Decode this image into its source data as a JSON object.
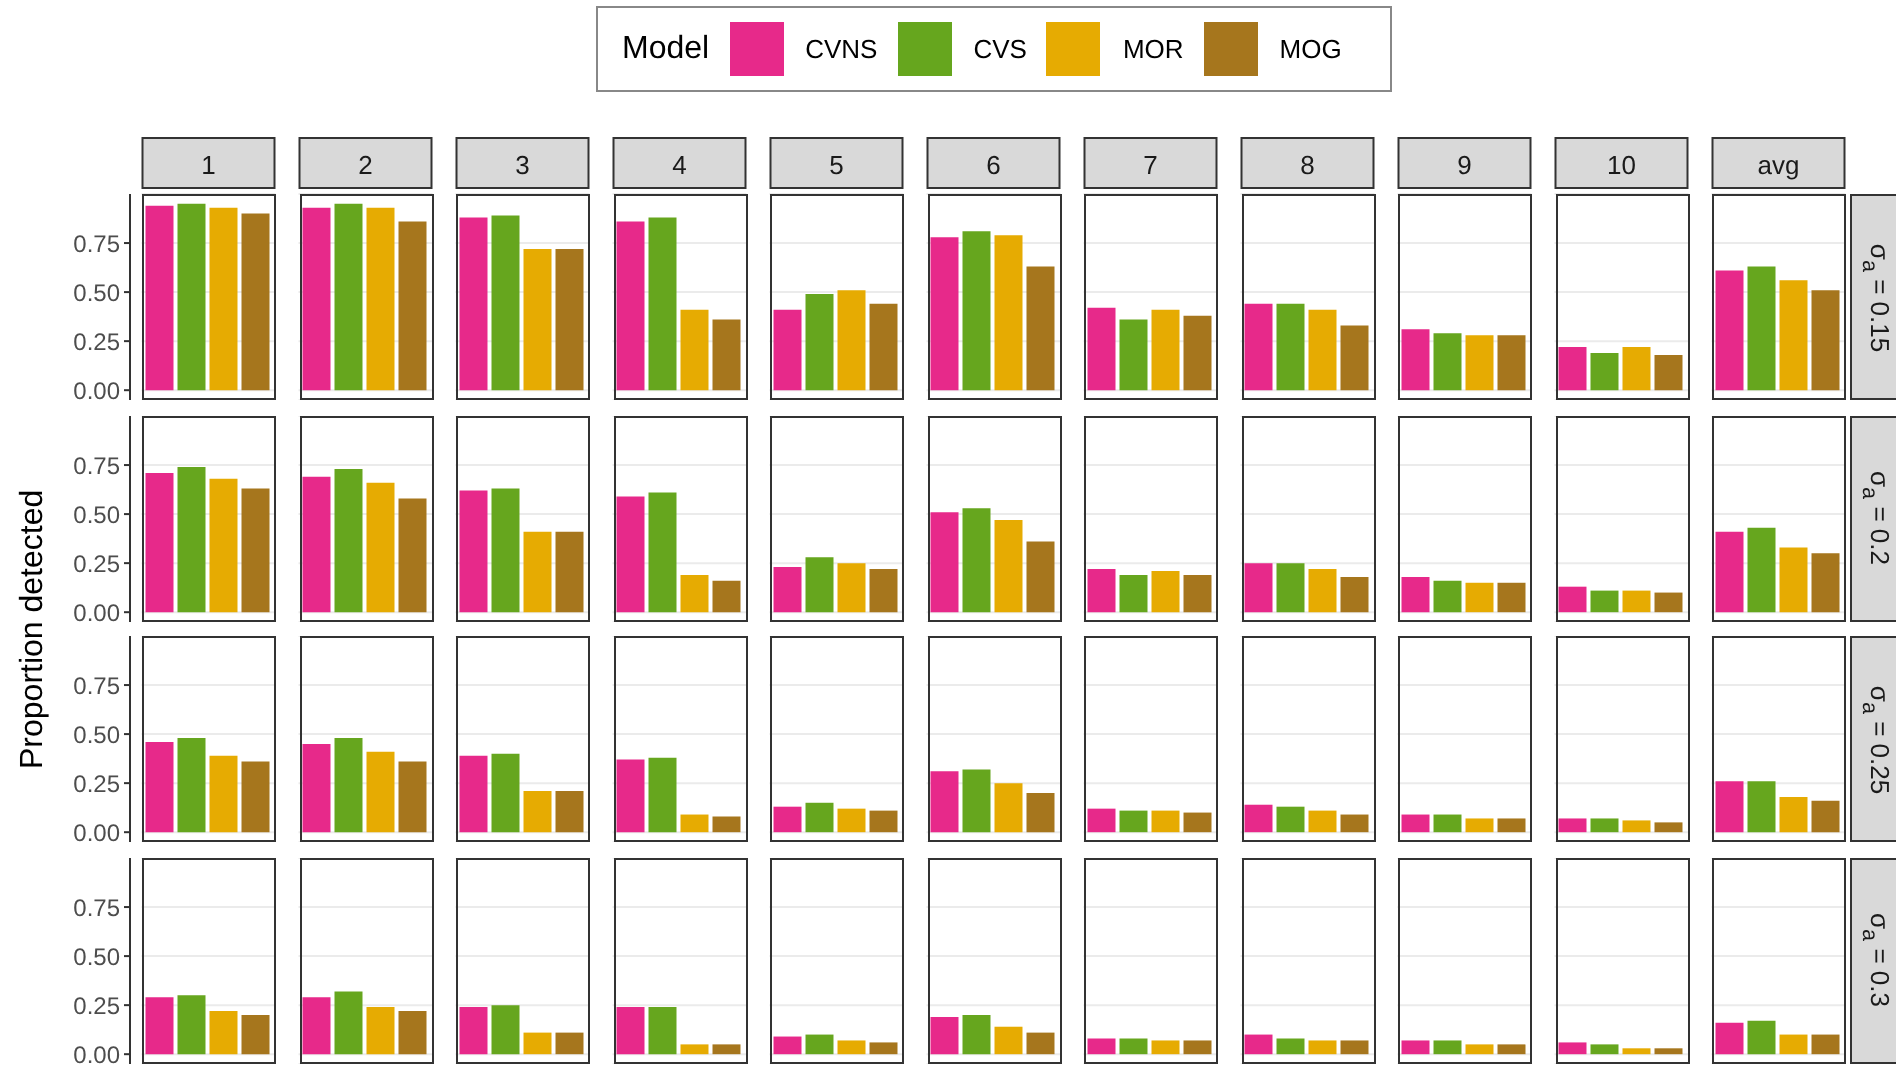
{
  "chart_data": [
    {
      "type": "bar",
      "legend": "top",
      "legend_title": "Model",
      "y2label": "σ$_{a}$ = 0.15",
      "grid": "y",
      "ylim": [
        -0.05,
        1
      ],
      "yticks": [
        {
          "value": 0,
          "label": "0.00"
        },
        {
          "value": 0.25,
          "label": "0.25"
        },
        {
          "value": 0.5,
          "label": "0.50"
        },
        {
          "value": 0.75,
          "label": "0.75"
        }
      ],
      "categories": [
        "1",
        "2",
        "3",
        "4",
        "5",
        "6",
        "7",
        "8",
        "9",
        "10",
        "avg"
      ],
      "series": [
        {
          "name": "CVNS",
          "color": "#e7298a",
          "values": [
            0.94,
            0.93,
            0.88,
            0.86,
            0.41,
            0.78,
            0.42,
            0.44,
            0.31,
            0.22,
            0.61
          ]
        },
        {
          "name": "CVS",
          "color": "#66a61e",
          "values": [
            0.95,
            0.95,
            0.89,
            0.88,
            0.49,
            0.81,
            0.36,
            0.44,
            0.29,
            0.19,
            0.63
          ]
        },
        {
          "name": "MOR",
          "color": "#e6ab02",
          "values": [
            0.93,
            0.93,
            0.72,
            0.41,
            0.51,
            0.79,
            0.41,
            0.41,
            0.28,
            0.22,
            0.56
          ]
        },
        {
          "name": "MOG",
          "color": "#a6761d",
          "values": [
            0.9,
            0.86,
            0.72,
            0.36,
            0.44,
            0.63,
            0.38,
            0.33,
            0.28,
            0.18,
            0.51
          ]
        }
      ]
    },
    {
      "type": "bar",
      "ylabel": "Proportion detected",
      "y2label": "σ$_{a}$ = 0.2",
      "tick_labels": "y",
      "grid": "y",
      "ylim": [
        -0.05,
        1
      ],
      "yticks": [
        {
          "value": 0,
          "label": "0.00"
        },
        {
          "value": 0.25,
          "label": "0.25"
        },
        {
          "value": 0.5,
          "label": "0.50"
        },
        {
          "value": 0.75,
          "label": "0.75"
        }
      ],
      "categories": [
        null,
        null,
        null,
        null,
        null,
        null,
        null,
        null,
        null,
        null,
        null
      ],
      "series": [
        {
          "color": "#e7298a",
          "values": [
            0.71,
            0.69,
            0.62,
            0.59,
            0.23,
            0.51,
            0.22,
            0.25,
            0.18,
            0.13,
            0.41
          ]
        },
        {
          "color": "#66a61e",
          "values": [
            0.74,
            0.73,
            0.63,
            0.61,
            0.28,
            0.53,
            0.19,
            0.25,
            0.16,
            0.11,
            0.43
          ]
        },
        {
          "color": "#e6ab02",
          "values": [
            0.68,
            0.66,
            0.41,
            0.19,
            0.25,
            0.47,
            0.21,
            0.22,
            0.15,
            0.11,
            0.33
          ]
        },
        {
          "color": "#a6761d",
          "values": [
            0.63,
            0.58,
            0.41,
            0.16,
            0.22,
            0.36,
            0.19,
            0.18,
            0.15,
            0.1,
            0.3
          ]
        }
      ]
    },
    {
      "type": "bar",
      "y2label": "σ$_{a}$ = 0.25",
      "tick_labels": "y",
      "grid": "y",
      "ylim": [
        -0.05,
        1
      ],
      "yticks": [
        {
          "value": 0,
          "label": "0.00"
        },
        {
          "value": 0.25,
          "label": "0.25"
        },
        {
          "value": 0.5,
          "label": "0.50"
        },
        {
          "value": 0.75,
          "label": "0.75"
        }
      ],
      "categories": [
        null,
        null,
        null,
        null,
        null,
        null,
        null,
        null,
        null,
        null,
        null
      ],
      "series": [
        {
          "color": "#e7298a",
          "values": [
            0.46,
            0.45,
            0.39,
            0.37,
            0.13,
            0.31,
            0.12,
            0.14,
            0.09,
            0.07,
            0.26
          ]
        },
        {
          "color": "#66a61e",
          "values": [
            0.48,
            0.48,
            0.4,
            0.38,
            0.15,
            0.32,
            0.11,
            0.13,
            0.09,
            0.07,
            0.26
          ]
        },
        {
          "color": "#e6ab02",
          "values": [
            0.39,
            0.41,
            0.21,
            0.09,
            0.12,
            0.25,
            0.11,
            0.11,
            0.07,
            0.06,
            0.18
          ]
        },
        {
          "color": "#a6761d",
          "values": [
            0.36,
            0.36,
            0.21,
            0.08,
            0.11,
            0.2,
            0.1,
            0.09,
            0.07,
            0.05,
            0.16
          ]
        }
      ]
    },
    {
      "type": "bar",
      "y2label": "σ$_{a}$ = 0.3",
      "tick_labels": "y",
      "grid": "y",
      "ylim": [
        -0.05,
        1
      ],
      "yticks": [
        {
          "value": 0,
          "label": "0.00"
        },
        {
          "value": 0.25,
          "label": "0.25"
        },
        {
          "value": 0.5,
          "label": "0.50"
        },
        {
          "value": 0.75,
          "label": "0.75"
        }
      ],
      "categories": [
        null,
        null,
        null,
        null,
        null,
        null,
        null,
        null,
        null,
        null,
        null
      ],
      "series": [
        {
          "color": "#e7298a",
          "values": [
            0.29,
            0.29,
            0.24,
            0.24,
            0.09,
            0.19,
            0.08,
            0.1,
            0.07,
            0.06,
            0.16
          ]
        },
        {
          "color": "#66a61e",
          "values": [
            0.3,
            0.32,
            0.25,
            0.24,
            0.1,
            0.2,
            0.08,
            0.08,
            0.07,
            0.05,
            0.17
          ]
        },
        {
          "color": "#e6ab02",
          "values": [
            0.22,
            0.24,
            0.11,
            0.05,
            0.07,
            0.14,
            0.07,
            0.07,
            0.05,
            0.03,
            0.1
          ]
        },
        {
          "color": "#a6761d",
          "values": [
            0.2,
            0.22,
            0.11,
            0.05,
            0.06,
            0.11,
            0.07,
            0.07,
            0.05,
            0.03,
            0.1
          ]
        }
      ]
    }
  ]
}
